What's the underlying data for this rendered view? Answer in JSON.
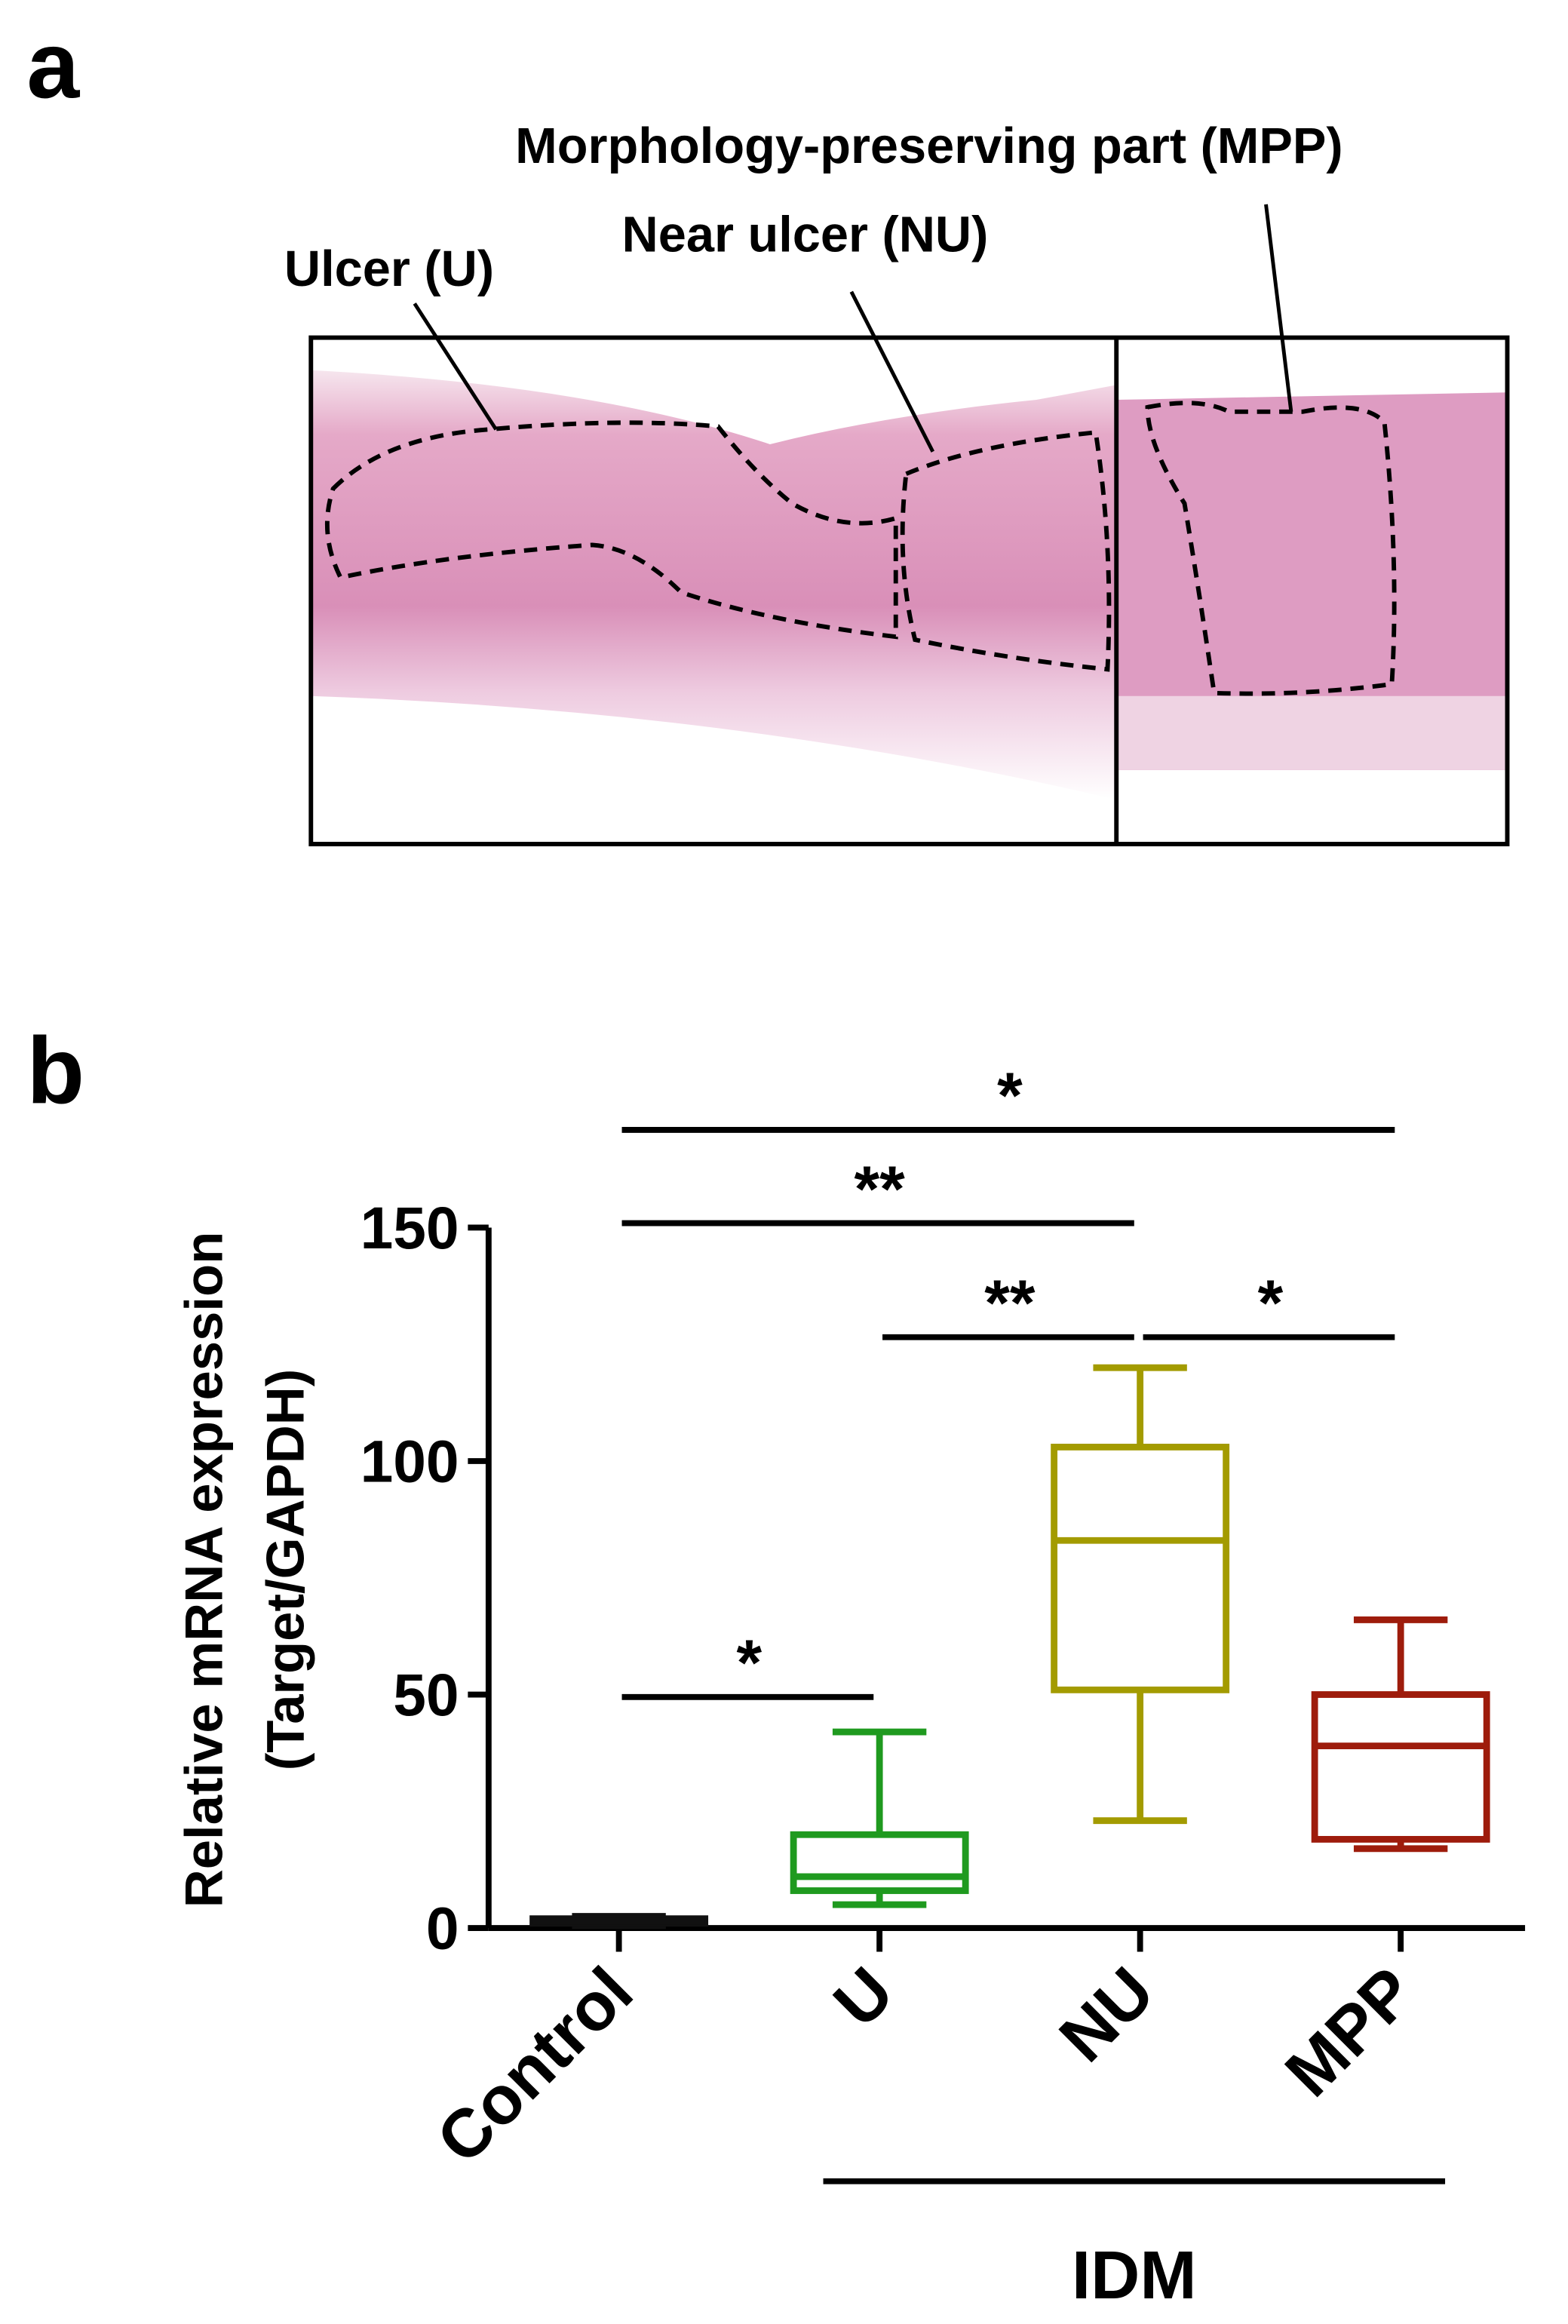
{
  "panel_a": {
    "label": "a",
    "annotations": [
      "Ulcer (U)",
      "Near ulcer (NU)",
      "Morphology-preserving part (MPP)"
    ]
  },
  "chart_data": {
    "type": "box",
    "panel_label": "b",
    "ylabel": [
      "Relative mRNA expression",
      "(Target/GAPDH)"
    ],
    "categories": [
      "Control",
      "U",
      "NU",
      "MPP"
    ],
    "group": {
      "label": "IDM",
      "members": [
        "U",
        "NU",
        "MPP"
      ]
    },
    "boxes": [
      {
        "color": "#111111",
        "min": 0.5,
        "q1": 1,
        "median": 1.5,
        "q3": 2,
        "max": 2.5
      },
      {
        "color": "#1f9a1f",
        "min": 5,
        "q1": 8,
        "median": 11,
        "q3": 20,
        "max": 42
      },
      {
        "color": "#a39b00",
        "min": 23,
        "q1": 51,
        "median": 83,
        "q3": 103,
        "max": 120
      },
      {
        "color": "#9e1c0c",
        "min": 17,
        "q1": 19,
        "median": 39,
        "q3": 50,
        "max": 66
      }
    ],
    "ylim": [
      0,
      150
    ],
    "yticks": [
      0,
      50,
      100,
      150
    ],
    "significance": [
      {
        "from": "Control",
        "to": "U",
        "label": "*"
      },
      {
        "from": "U",
        "to": "NU",
        "label": "**"
      },
      {
        "from": "NU",
        "to": "MPP",
        "label": "*"
      },
      {
        "from": "Control",
        "to": "NU",
        "label": "**"
      },
      {
        "from": "Control",
        "to": "MPP",
        "label": "*"
      }
    ]
  }
}
